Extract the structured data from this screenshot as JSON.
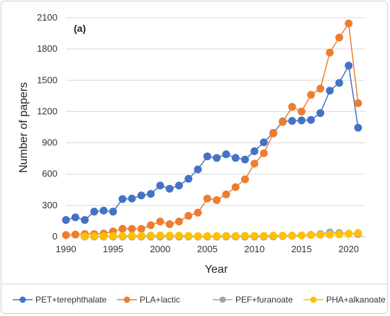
{
  "chart_data": {
    "type": "line",
    "panel_label": "(a)",
    "xlabel": "Year",
    "ylabel": "Number of papers",
    "xlim": [
      1990,
      2021
    ],
    "ylim": [
      0,
      2100
    ],
    "x_ticks": [
      1990,
      1995,
      2000,
      2005,
      2010,
      2015,
      2020
    ],
    "y_ticks": [
      0,
      300,
      600,
      900,
      1200,
      1500,
      1800,
      2100
    ],
    "grid": "horizontal",
    "legend_position": "bottom",
    "series": [
      {
        "name": "PET+terephthalate",
        "color": "#4472C4",
        "x": [
          1990,
          1991,
          1992,
          1993,
          1994,
          1995,
          1996,
          1997,
          1998,
          1999,
          2000,
          2001,
          2002,
          2003,
          2004,
          2005,
          2006,
          2007,
          2008,
          2009,
          2010,
          2011,
          2012,
          2013,
          2014,
          2015,
          2016,
          2017,
          2018,
          2019,
          2020,
          2021
        ],
        "values": [
          160,
          185,
          160,
          240,
          250,
          240,
          360,
          365,
          395,
          410,
          490,
          460,
          490,
          555,
          645,
          770,
          755,
          790,
          755,
          740,
          820,
          905,
          995,
          1105,
          1110,
          1115,
          1120,
          1185,
          1400,
          1475,
          1640,
          1045
        ]
      },
      {
        "name": "PLA+lactic",
        "color": "#ED7D31",
        "x": [
          1990,
          1991,
          1992,
          1993,
          1994,
          1995,
          1996,
          1997,
          1998,
          1999,
          2000,
          2001,
          2002,
          2003,
          2004,
          2005,
          2006,
          2007,
          2008,
          2009,
          2010,
          2011,
          2012,
          2013,
          2014,
          2015,
          2016,
          2017,
          2018,
          2019,
          2020,
          2021
        ],
        "values": [
          15,
          20,
          25,
          25,
          30,
          50,
          75,
          75,
          75,
          110,
          145,
          120,
          145,
          200,
          230,
          365,
          350,
          405,
          475,
          550,
          700,
          800,
          990,
          1100,
          1245,
          1200,
          1360,
          1420,
          1765,
          1910,
          2045,
          1280
        ]
      },
      {
        "name": "PEF+furanoate",
        "color": "#A5A5A5",
        "x": [
          1992,
          1993,
          1994,
          1995,
          1996,
          1997,
          1998,
          1999,
          2000,
          2001,
          2002,
          2003,
          2004,
          2005,
          2006,
          2007,
          2008,
          2009,
          2010,
          2011,
          2012,
          2013,
          2014,
          2015,
          2016,
          2017,
          2018,
          2019,
          2020,
          2021
        ],
        "values": [
          0,
          0,
          0,
          0,
          0,
          0,
          0,
          0,
          0,
          0,
          0,
          0,
          0,
          0,
          0,
          0,
          0,
          0,
          0,
          0,
          2,
          5,
          8,
          12,
          18,
          25,
          40,
          35,
          30,
          25
        ]
      },
      {
        "name": "PHA+alkanoate",
        "color": "#FFC000",
        "x": [
          1992,
          1993,
          1994,
          1995,
          1996,
          1997,
          1998,
          1999,
          2000,
          2001,
          2002,
          2003,
          2004,
          2005,
          2006,
          2007,
          2008,
          2009,
          2010,
          2011,
          2012,
          2013,
          2014,
          2015,
          2016,
          2017,
          2018,
          2019,
          2020,
          2021
        ],
        "values": [
          3,
          5,
          5,
          6,
          7,
          8,
          8,
          10,
          12,
          10,
          10,
          8,
          5,
          5,
          6,
          7,
          7,
          8,
          8,
          8,
          10,
          10,
          10,
          12,
          15,
          18,
          20,
          22,
          28,
          35
        ]
      }
    ]
  }
}
